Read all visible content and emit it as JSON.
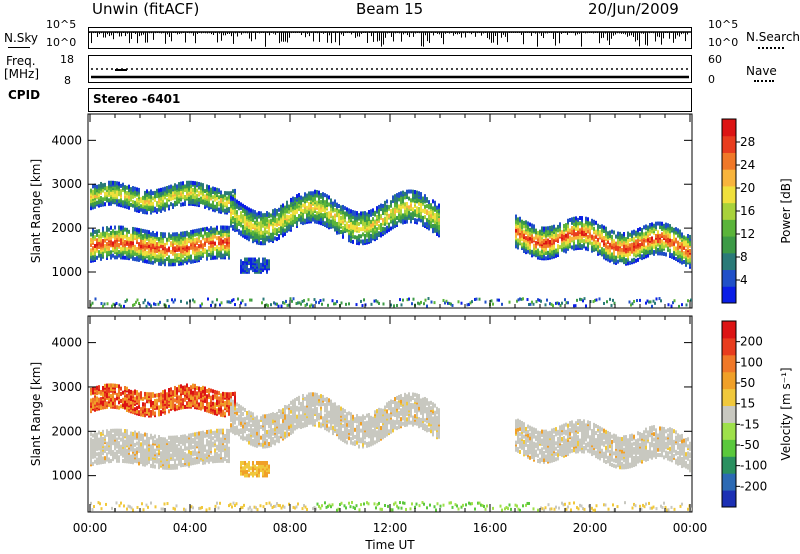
{
  "header": {
    "station": "Unwin (fitACF)",
    "beam": "Beam 15",
    "date": "20/Jun/2009"
  },
  "top_panel": {
    "left_label": "N.Sky",
    "left_tick_top": "10^5",
    "left_tick_bottom": "10^0",
    "right_tick_top": "10^5",
    "right_tick_bottom": "10^0",
    "right_label": "N.Search"
  },
  "freq_panel": {
    "label_line1": "Freq.",
    "label_line2": "[MHz]",
    "left_tick_top": "18",
    "left_tick_bottom": "8",
    "right_tick_top": "60",
    "right_tick_bottom": "0",
    "right_label": "Nave"
  },
  "cpid": {
    "label": "CPID",
    "value": "Stereo -6401"
  },
  "chart_data": [
    {
      "type": "heatmap",
      "name": "power",
      "ylabel": "Slant Range [km]",
      "yticks": [
        "4000",
        "3000",
        "2000",
        "1000"
      ],
      "ylim": [
        180,
        4600
      ],
      "xlim_hours": [
        0,
        24
      ],
      "colorbar_label": "Power [dB]",
      "colorbar_ticks": [
        "28",
        "24",
        "20",
        "16",
        "12",
        "8",
        "4"
      ],
      "colors": [
        "#0a1ee6",
        "#2050c8",
        "#2a7a78",
        "#3c9a46",
        "#5ab43a",
        "#a8d23a",
        "#f0e03c",
        "#f8b43c",
        "#f07828",
        "#e83c1e",
        "#dc1414"
      ]
    },
    {
      "type": "heatmap",
      "name": "velocity",
      "ylabel": "Slant Range [km]",
      "yticks": [
        "4000",
        "3000",
        "2000",
        "1000"
      ],
      "ylim": [
        180,
        4600
      ],
      "xlim_hours": [
        0,
        24
      ],
      "colorbar_label": "Velocity [m s⁻¹]",
      "colorbar_ticks": [
        "200",
        "100",
        "50",
        "15",
        "-15",
        "-50",
        "-100",
        "-200"
      ],
      "colors": [
        "#1c30b4",
        "#2c6ab4",
        "#2a9060",
        "#5ac83c",
        "#9ee04a",
        "#c8c8c0",
        "#f0c83c",
        "#f0a028",
        "#f07828",
        "#e83c1e",
        "#dc1414"
      ]
    }
  ],
  "x_axis": {
    "ticks": [
      "00:00",
      "04:00",
      "08:00",
      "12:00",
      "16:00",
      "20:00",
      "00:00"
    ],
    "label": "Time UT"
  }
}
